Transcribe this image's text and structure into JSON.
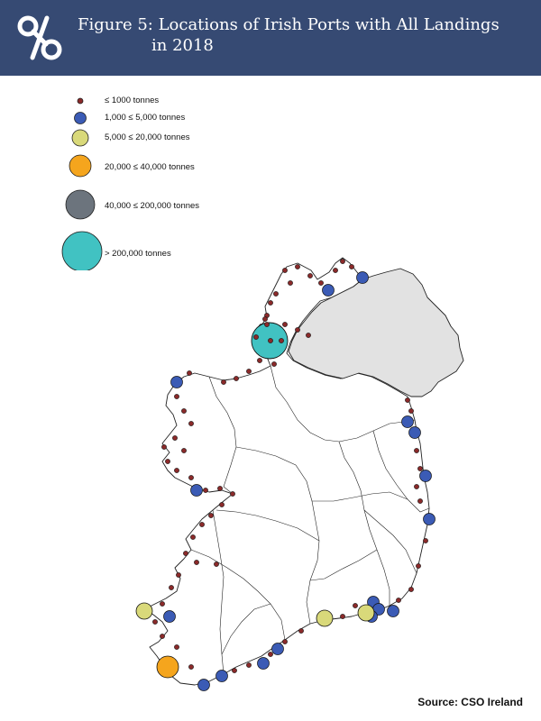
{
  "header": {
    "title_line1": "Figure 5: Locations of Irish Ports with All Landings",
    "title_line2": "in 2018",
    "logo_icon": "cso-logo-icon",
    "background_color": "#364a73"
  },
  "legend": {
    "items": [
      {
        "label": "≤ 1000 tonnes",
        "color": "#8b2a2a"
      },
      {
        "label": "1,000 ≤ 5,000 tonnes",
        "color": "#3b5bb5"
      },
      {
        "label": "5,000 ≤ 20,000 tonnes",
        "color": "#d9d97a"
      },
      {
        "label": "20,000 ≤ 40,000 tonnes",
        "color": "#f5a51d"
      },
      {
        "label": "40,000 ≤ 200,000 tonnes",
        "color": "#6c747d"
      },
      {
        "label": "> 200,000 tonnes",
        "color": "#41c2c2"
      }
    ]
  },
  "map": {
    "republic_fill": "#ffffff",
    "northern_ireland_fill": "#e2e2e2",
    "border_color": "#222222"
  },
  "source": "Source:  CSO Ireland"
}
